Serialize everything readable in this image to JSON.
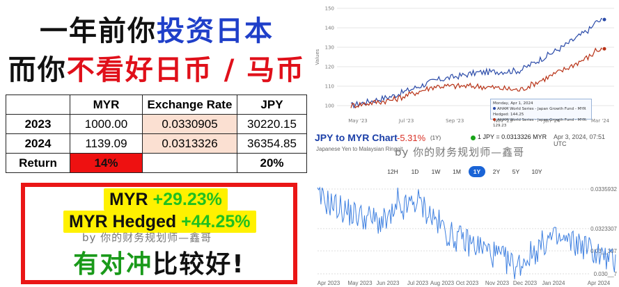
{
  "headline": {
    "line1_part1": "一年前你",
    "line1_part2": "投资日本",
    "line2_part1": "而你",
    "line2_part2": "不看好日币 / 马币"
  },
  "table": {
    "headers": [
      "",
      "MYR",
      "Exchange Rate",
      "JPY"
    ],
    "rows": [
      {
        "label": "2023",
        "myr": "1000.00",
        "rate": "0.0330905",
        "jpy": "30220.15"
      },
      {
        "label": "2024",
        "myr": "1139.09",
        "rate": "0.0313326",
        "jpy": "36354.85"
      },
      {
        "label": "Return",
        "myr": "14%",
        "rate": "",
        "jpy": "20%"
      }
    ]
  },
  "summary": {
    "myr_label": "MYR",
    "myr_pct": "+29.23%",
    "hedged_label": "MYR Hedged",
    "hedged_pct": "+44.25%",
    "byline": "by 你的财务规划师—鑫哥",
    "conclusion_part1": "有对冲",
    "conclusion_part2": "比较好!"
  },
  "fund_chart": {
    "y_ticks": [
      "150",
      "140",
      "130",
      "120",
      "110",
      "100"
    ],
    "x_ticks": [
      "May '23",
      "Jul '23",
      "Sep '23",
      "Nov '23",
      "Jan '24",
      "Mar '24"
    ],
    "y_axis_label": "Values",
    "tooltip_date": "Monday, Apr 1, 2024",
    "tooltip_line1": "AHAM World Series - Japan Growth Fund - MYR Hedged: 144.25",
    "tooltip_line2": "AHAM World Series - Japan Growth Fund - MYR: 129.23",
    "colors": {
      "hedged": "#2a4aa8",
      "myr": "#b83216"
    }
  },
  "fx_chart": {
    "title": "JPY to MYR Chart",
    "change": "-5.31%",
    "period": "(1Y)",
    "rate_text": "1 JPY = 0.0313326 MYR",
    "datetime": "Apr 3, 2024, 07:51 UTC",
    "subtitle": "Japanese Yen to Malaysian Ringgit",
    "byline": "by 你的财务规划师—鑫哥",
    "ranges": [
      "12H",
      "1D",
      "1W",
      "1M",
      "1Y",
      "2Y",
      "5Y",
      "10Y"
    ],
    "active_range": "1Y",
    "y_ticks": [
      "0.0335932",
      "0.0323307",
      "0.03__307",
      "0.030__7"
    ],
    "x_ticks": [
      "Apr 2023",
      "May 2023",
      "Jun 2023",
      "Jul 2023",
      "Aug 2023",
      "Oct 2023",
      "Nov 2023",
      "Dec 2023",
      "Jan 2024",
      "Apr 2024"
    ],
    "line_color": "#3d7fe0"
  },
  "chart_data": [
    {
      "type": "line",
      "x": [
        "May '23",
        "Jul '23",
        "Sep '23",
        "Nov '23",
        "Jan '24",
        "Mar '24"
      ],
      "ylim": [
        100,
        150
      ],
      "series": [
        {
          "name": "AHAM World Series - Japan Growth Fund - MYR Hedged",
          "values": [
            105,
            113,
            117,
            118,
            130,
            144.25
          ]
        },
        {
          "name": "AHAM World Series - Japan Growth Fund - MYR",
          "values": [
            103,
            110,
            110,
            108,
            118,
            129.23
          ]
        }
      ]
    },
    {
      "type": "line",
      "title": "JPY to MYR Chart",
      "x": [
        "Apr 2023",
        "May 2023",
        "Jun 2023",
        "Jul 2023",
        "Aug 2023",
        "Oct 2023",
        "Nov 2023",
        "Dec 2023",
        "Jan 2024",
        "Apr 2024"
      ],
      "ylim": [
        0.0309,
        0.0337
      ],
      "series": [
        {
          "name": "JPY to MYR",
          "values": [
            0.0334,
            0.0329,
            0.0326,
            0.0333,
            0.0322,
            0.0318,
            0.0312,
            0.0321,
            0.0319,
            0.0313
          ]
        }
      ]
    }
  ]
}
